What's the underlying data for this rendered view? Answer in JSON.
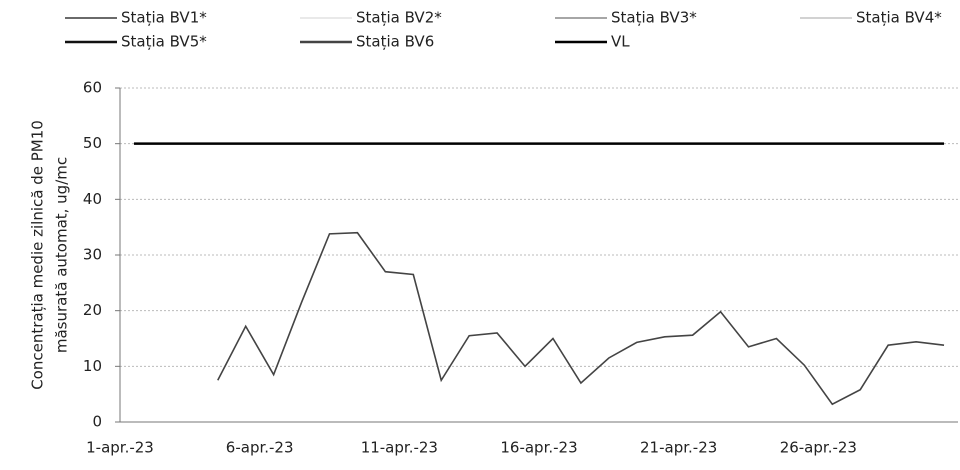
{
  "chart_data": {
    "type": "line",
    "y_label": [
      "Concentrația medie zilnică de PM10",
      "măsurată automat, ug/mc"
    ],
    "categories": [
      "1-apr.-23",
      null,
      null,
      null,
      null,
      "6-apr.-23",
      null,
      null,
      null,
      null,
      "11-apr.-23",
      null,
      null,
      null,
      null,
      "16-apr.-23",
      null,
      null,
      null,
      null,
      "21-apr.-23",
      null,
      null,
      null,
      null,
      "26-apr.-23",
      null,
      null,
      null,
      null
    ],
    "series": [
      {
        "name": "Stația BV1*",
        "color": "#555555",
        "values": [
          null,
          null,
          null,
          null,
          null,
          null,
          null,
          null,
          null,
          null,
          null,
          null,
          null,
          null,
          null,
          null,
          null,
          null,
          null,
          null,
          null,
          null,
          null,
          null,
          null,
          null,
          null,
          null,
          null,
          null
        ]
      },
      {
        "name": "Stația BV2*",
        "color": "#e6e6e6",
        "values": [
          null,
          null,
          null,
          null,
          null,
          null,
          null,
          null,
          null,
          null,
          null,
          null,
          null,
          null,
          null,
          null,
          null,
          null,
          null,
          null,
          null,
          null,
          null,
          null,
          null,
          null,
          null,
          null,
          null,
          null
        ]
      },
      {
        "name": "Stația BV3*",
        "color": "#9a9a9a",
        "values": [
          null,
          null,
          null,
          null,
          null,
          null,
          null,
          null,
          null,
          null,
          null,
          null,
          null,
          null,
          null,
          null,
          null,
          null,
          null,
          null,
          null,
          null,
          null,
          null,
          null,
          null,
          null,
          null,
          null,
          null
        ]
      },
      {
        "name": "Stația BV4*",
        "color": "#cccccc",
        "values": [
          null,
          null,
          null,
          null,
          null,
          null,
          null,
          null,
          null,
          null,
          null,
          null,
          null,
          null,
          null,
          null,
          null,
          null,
          null,
          null,
          null,
          null,
          null,
          null,
          null,
          null,
          null,
          null,
          null,
          null
        ]
      },
      {
        "name": "Stația BV5*",
        "color": "#111111",
        "values": [
          null,
          null,
          null,
          null,
          null,
          null,
          null,
          null,
          null,
          null,
          null,
          null,
          null,
          null,
          null,
          null,
          null,
          null,
          null,
          null,
          null,
          null,
          null,
          null,
          null,
          null,
          null,
          null,
          null,
          null
        ]
      },
      {
        "name": "Stația BV6",
        "color": "#444444",
        "values": [
          null,
          null,
          null,
          7.5,
          17.2,
          8.5,
          21.5,
          33.8,
          34,
          27,
          26.5,
          7.5,
          15.5,
          16,
          10,
          15,
          7,
          11.5,
          14.3,
          15.3,
          15.6,
          19.8,
          13.5,
          15,
          10.2,
          3.2,
          5.8,
          13.8,
          14.4,
          13.8
        ]
      },
      {
        "name": "VL",
        "color": "#000000",
        "values": [
          50,
          50,
          50,
          50,
          50,
          50,
          50,
          50,
          50,
          50,
          50,
          50,
          50,
          50,
          50,
          50,
          50,
          50,
          50,
          50,
          50,
          50,
          50,
          50,
          50,
          50,
          50,
          50,
          50,
          50
        ]
      }
    ],
    "ylim": [
      0,
      60
    ],
    "yticks": [
      0,
      10,
      20,
      30,
      40,
      50,
      60
    ],
    "grid": true
  }
}
